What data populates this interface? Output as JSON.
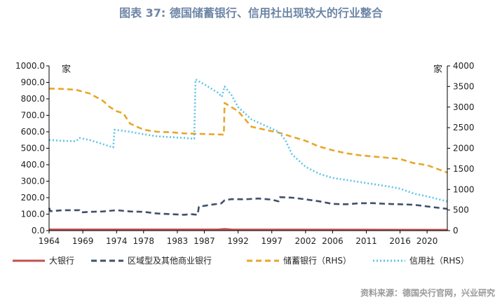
{
  "chart_data": {
    "type": "line",
    "title": "图表 37: 德国储蓄银行、信用社出现较大的行业整合",
    "left_unit": "家",
    "right_unit": "家",
    "source": "资料来源：德国央行官网，兴业研究",
    "x_range": [
      1964,
      2023
    ],
    "ylim_left": [
      0,
      1000
    ],
    "ylim_right": [
      0,
      4000
    ],
    "x_ticks": [
      1964,
      1969,
      1974,
      1978,
      1983,
      1987,
      1992,
      1997,
      2002,
      2006,
      2011,
      2016,
      2020
    ],
    "x_tick_labels": [
      "1964",
      "1969",
      "1974",
      "1978",
      "1983",
      "1987",
      "1992",
      "1997",
      "2002",
      "2006",
      "2011",
      "2016",
      "2020"
    ],
    "y_ticks_left": [
      0,
      100,
      200,
      300,
      400,
      500,
      600,
      700,
      800,
      900,
      1000
    ],
    "y_tick_labels_left": [
      "0.0",
      "100.0",
      "200.0",
      "300.0",
      "400.0",
      "500.0",
      "600.0",
      "700.0",
      "800.0",
      "900.0",
      "1000.0"
    ],
    "y_ticks_right": [
      0,
      500,
      1000,
      1500,
      2000,
      2500,
      3000,
      3500,
      4000
    ],
    "y_tick_labels_right": [
      "0",
      "500",
      "1000",
      "1500",
      "2000",
      "2500",
      "3000",
      "3500",
      "4000"
    ],
    "legend": [
      "大银行",
      "区域型及其他商业银行",
      "储蓄银行（RHS）",
      "信用社（RHS）"
    ],
    "series": [
      {
        "name": "大银行",
        "axis": "left",
        "color": "#c0504d",
        "style": "solid",
        "x": [
          1964,
          1975,
          1985,
          1989,
          1990,
          1991,
          2000,
          2023
        ],
        "y": [
          6,
          6,
          6,
          6,
          9,
          6,
          5,
          4
        ]
      },
      {
        "name": "区域型及其他商业银行",
        "axis": "left",
        "color": "#3f4f6b",
        "style": "dashed",
        "x": [
          1964,
          1964.2,
          1966,
          1968.5,
          1968.7,
          1970,
          1972,
          1974,
          1976,
          1978,
          1980,
          1982,
          1984,
          1985,
          1986,
          1986.2,
          1988,
          1989.5,
          1990,
          1991,
          1993,
          1995,
          1997,
          1998,
          1998.2,
          2000,
          2002,
          2004,
          2006,
          2008,
          2010,
          2012,
          2014,
          2016,
          2018,
          2020,
          2023
        ],
        "y": [
          138,
          118,
          124,
          124,
          110,
          114,
          116,
          124,
          116,
          114,
          104,
          100,
          96,
          100,
          96,
          145,
          157,
          165,
          184,
          191,
          190,
          195,
          188,
          178,
          203,
          200,
          190,
          178,
          162,
          160,
          166,
          167,
          162,
          160,
          157,
          147,
          132
        ]
      },
      {
        "name": "储蓄银行（RHS）",
        "axis": "right",
        "color": "#e8a62a",
        "style": "dashed",
        "x": [
          1964,
          1966,
          1968,
          1970,
          1972,
          1973,
          1974,
          1975,
          1976,
          1978,
          1980,
          1982,
          1984,
          1986,
          1988,
          1989.9,
          1990,
          1992,
          1994,
          1996,
          1998,
          2000,
          2002,
          2004,
          2006,
          2008,
          2010,
          2012,
          2014,
          2016,
          2018,
          2020,
          2023
        ],
        "y": [
          3450,
          3440,
          3420,
          3330,
          3150,
          3000,
          2900,
          2850,
          2600,
          2450,
          2400,
          2390,
          2360,
          2350,
          2340,
          2330,
          3100,
          2900,
          2520,
          2450,
          2380,
          2280,
          2180,
          2040,
          1950,
          1880,
          1830,
          1800,
          1770,
          1740,
          1640,
          1590,
          1410
        ]
      },
      {
        "name": "信用社（RHS）",
        "axis": "right",
        "color": "#5ec3e8",
        "style": "dotted",
        "x": [
          1964,
          1966,
          1968,
          1968.5,
          1970,
          1972,
          1973.5,
          1973.7,
          1976,
          1978,
          1980,
          1982,
          1984,
          1985.5,
          1985.7,
          1987,
          1989,
          1989.6,
          1990,
          1991,
          1992,
          1994,
          1996,
          1998,
          1999,
          2000,
          2002,
          2004,
          2006,
          2008,
          2010,
          2012,
          2014,
          2016,
          2018,
          2020,
          2023
        ],
        "y": [
          2200,
          2180,
          2170,
          2250,
          2200,
          2100,
          2020,
          2450,
          2400,
          2340,
          2290,
          2270,
          2250,
          2230,
          3670,
          3550,
          3350,
          3250,
          3500,
          3300,
          3000,
          2700,
          2550,
          2400,
          2200,
          1850,
          1550,
          1380,
          1280,
          1230,
          1180,
          1130,
          1080,
          1020,
          900,
          830,
          710
        ]
      }
    ]
  }
}
